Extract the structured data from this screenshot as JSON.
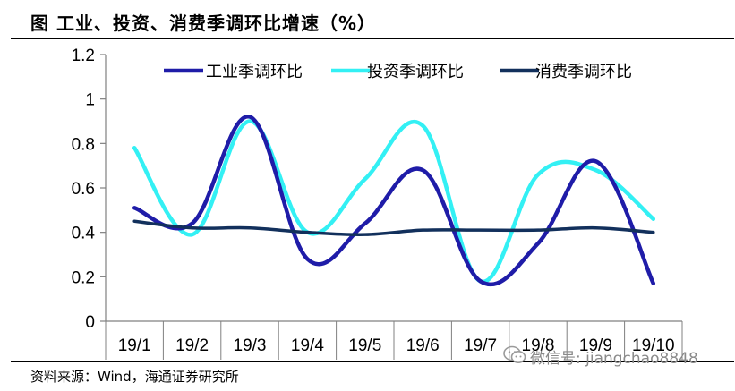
{
  "header": {
    "title": "图    工业、投资、消费季调环比增速（%）"
  },
  "footer": {
    "source": "资料来源：Wind，海通证券研究所"
  },
  "watermark": {
    "text": "微信号: jiangchao8848",
    "icon": "wechat-icon"
  },
  "chart_data": {
    "type": "line",
    "categories": [
      "19/1",
      "19/2",
      "19/3",
      "19/4",
      "19/5",
      "19/6",
      "19/7",
      "19/8",
      "19/9",
      "19/10"
    ],
    "ylim": [
      0,
      1.2
    ],
    "yticks": [
      "0",
      "0.2",
      "0.4",
      "0.6",
      "0.8",
      "1",
      "1.2"
    ],
    "grid": false,
    "legend_position": "top",
    "series": [
      {
        "name": "工业季调环比",
        "color": "#1f1ca8",
        "values": [
          0.51,
          0.44,
          0.92,
          0.28,
          0.44,
          0.68,
          0.18,
          0.35,
          0.72,
          0.17
        ]
      },
      {
        "name": "投资季调环比",
        "color": "#33f0f4",
        "values": [
          0.78,
          0.39,
          0.9,
          0.4,
          0.64,
          0.88,
          0.18,
          0.66,
          0.68,
          0.46
        ]
      },
      {
        "name": "消费季调环比",
        "color": "#12305c",
        "values": [
          0.45,
          0.42,
          0.42,
          0.4,
          0.39,
          0.41,
          0.41,
          0.41,
          0.42,
          0.4
        ]
      }
    ]
  }
}
